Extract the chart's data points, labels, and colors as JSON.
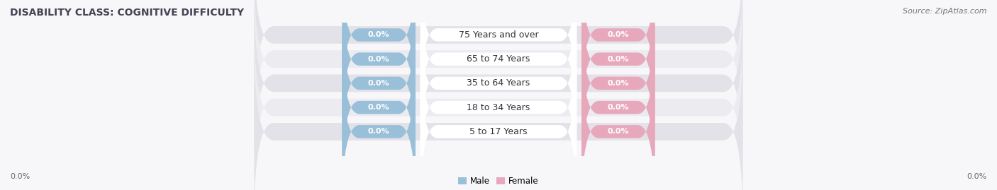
{
  "title": "DISABILITY CLASS: COGNITIVE DIFFICULTY",
  "source": "Source: ZipAtlas.com",
  "categories": [
    "5 to 17 Years",
    "18 to 34 Years",
    "35 to 64 Years",
    "65 to 74 Years",
    "75 Years and over"
  ],
  "male_values": [
    0.0,
    0.0,
    0.0,
    0.0,
    0.0
  ],
  "female_values": [
    0.0,
    0.0,
    0.0,
    0.0,
    0.0
  ],
  "male_color": "#9abfd8",
  "female_color": "#e8a8bc",
  "bar_bg_color": "#e2e2e8",
  "bar_bg_color2": "#ebebf0",
  "center_label_bg": "#ffffff",
  "background_color": "#f7f7f9",
  "title_fontsize": 10,
  "source_fontsize": 8,
  "label_fontsize": 8,
  "cat_fontsize": 9,
  "figsize": [
    14.06,
    2.69
  ],
  "dpi": 100,
  "left_label": "0.0%",
  "right_label": "0.0%",
  "legend_male": "Male",
  "legend_female": "Female"
}
